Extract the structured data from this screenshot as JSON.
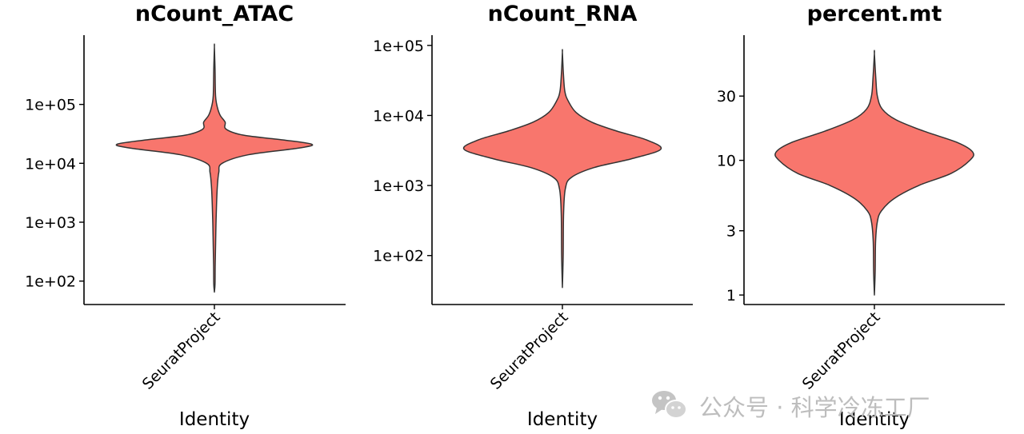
{
  "chart_data": [
    {
      "type": "violin",
      "title": "nCount_ATAC",
      "xlabel": "Identity",
      "categories": [
        "SeuratProject"
      ],
      "yscale": "log10",
      "yticks": [
        100,
        1000,
        10000,
        100000
      ],
      "ytick_labels": [
        "1e+02",
        "1e+03",
        "1e+04",
        "1e+05"
      ],
      "ylim": [
        40,
        1500000
      ],
      "fill": "#F8766D",
      "violin": [
        {
          "y": 65,
          "w": 0
        },
        {
          "y": 90,
          "w": 0.004
        },
        {
          "y": 180,
          "w": 0.008
        },
        {
          "y": 400,
          "w": 0.012
        },
        {
          "y": 900,
          "w": 0.016
        },
        {
          "y": 2000,
          "w": 0.022
        },
        {
          "y": 4000,
          "w": 0.03
        },
        {
          "y": 7000,
          "w": 0.045
        },
        {
          "y": 10000,
          "w": 0.08
        },
        {
          "y": 14000,
          "w": 0.35
        },
        {
          "y": 18000,
          "w": 0.85
        },
        {
          "y": 21000,
          "w": 1.0
        },
        {
          "y": 25000,
          "w": 0.7
        },
        {
          "y": 30000,
          "w": 0.3
        },
        {
          "y": 38000,
          "w": 0.12
        },
        {
          "y": 50000,
          "w": 0.11
        },
        {
          "y": 65000,
          "w": 0.06
        },
        {
          "y": 90000,
          "w": 0.03
        },
        {
          "y": 140000,
          "w": 0.012
        },
        {
          "y": 400000,
          "w": 0.006
        },
        {
          "y": 950000,
          "w": 0
        }
      ]
    },
    {
      "type": "violin",
      "title": "nCount_RNA",
      "xlabel": "Identity",
      "categories": [
        "SeuratProject"
      ],
      "yscale": "log10",
      "yticks": [
        100,
        1000,
        10000,
        100000
      ],
      "ytick_labels": [
        "1e+02",
        "1e+03",
        "1e+04",
        "1e+05"
      ],
      "ylim": [
        20,
        140000
      ],
      "fill": "#F8766D",
      "violin": [
        {
          "y": 35,
          "w": 0
        },
        {
          "y": 100,
          "w": 0.008
        },
        {
          "y": 400,
          "w": 0.012
        },
        {
          "y": 900,
          "w": 0.03
        },
        {
          "y": 1300,
          "w": 0.09
        },
        {
          "y": 1800,
          "w": 0.32
        },
        {
          "y": 2400,
          "w": 0.7
        },
        {
          "y": 3300,
          "w": 1.0
        },
        {
          "y": 4500,
          "w": 0.85
        },
        {
          "y": 6000,
          "w": 0.55
        },
        {
          "y": 8000,
          "w": 0.3
        },
        {
          "y": 11000,
          "w": 0.14
        },
        {
          "y": 16000,
          "w": 0.06
        },
        {
          "y": 22000,
          "w": 0.025
        },
        {
          "y": 40000,
          "w": 0.01
        },
        {
          "y": 80000,
          "w": 0
        }
      ]
    },
    {
      "type": "violin",
      "title": "percent.mt",
      "xlabel": "Identity",
      "categories": [
        "SeuratProject"
      ],
      "yscale": "log10",
      "yticks": [
        1,
        3,
        10,
        30
      ],
      "ytick_labels": [
        "1",
        "3",
        "10",
        "30"
      ],
      "ylim": [
        0.85,
        85
      ],
      "fill": "#F8766D",
      "violin": [
        {
          "y": 1.0,
          "w": 0
        },
        {
          "y": 1.5,
          "w": 0.008
        },
        {
          "y": 2.5,
          "w": 0.012
        },
        {
          "y": 3.5,
          "w": 0.03
        },
        {
          "y": 4.2,
          "w": 0.07
        },
        {
          "y": 5.2,
          "w": 0.2
        },
        {
          "y": 6.5,
          "w": 0.45
        },
        {
          "y": 8.0,
          "w": 0.78
        },
        {
          "y": 10.0,
          "w": 0.97
        },
        {
          "y": 11.5,
          "w": 1.0
        },
        {
          "y": 13.5,
          "w": 0.85
        },
        {
          "y": 16.5,
          "w": 0.5
        },
        {
          "y": 20.0,
          "w": 0.22
        },
        {
          "y": 24.0,
          "w": 0.08
        },
        {
          "y": 30.0,
          "w": 0.03
        },
        {
          "y": 40.0,
          "w": 0.015
        },
        {
          "y": 62.0,
          "w": 0
        }
      ]
    }
  ],
  "watermark": {
    "text": "公众号 · 科学冷冻工厂",
    "icon": "wechat-icon"
  }
}
